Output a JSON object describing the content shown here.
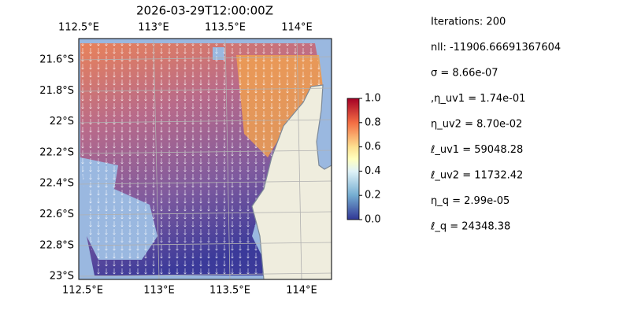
{
  "title": "2026-03-29T12:00:00Z",
  "map": {
    "lon_ticks_top": [
      "112.5°E",
      "113°E",
      "113.5°E",
      "114°E"
    ],
    "lon_ticks_bottom": [
      "112.5°E",
      "113°E",
      "113.5°E",
      "114°E"
    ],
    "lat_ticks": [
      "21.6°S",
      "21.8°S",
      "22°S",
      "22.2°S",
      "22.4°S",
      "22.6°S",
      "22.8°S",
      "23°S"
    ]
  },
  "colorbar": {
    "lim": [
      0,
      1
    ],
    "ticks": [
      {
        "value": 0,
        "label": "0.0"
      },
      {
        "value": 0.2,
        "label": "0.2"
      },
      {
        "value": 0.4,
        "label": "0.4"
      },
      {
        "value": 0.6,
        "label": "0.6"
      },
      {
        "value": 0.8,
        "label": "0.8"
      },
      {
        "value": 1,
        "label": "1.0"
      }
    ]
  },
  "info": [
    "Iterations: 200",
    "nll: -11906.66691367604",
    "σ = 8.66e-07",
    ",η_uv1 = 1.74e-01",
    "η_uv2 = 8.70e-02",
    "ℓ_uv1 = 59048.28",
    "ℓ_uv2 = 11732.42",
    "η_q = 2.99e-05",
    "ℓ_q = 24348.38"
  ]
}
